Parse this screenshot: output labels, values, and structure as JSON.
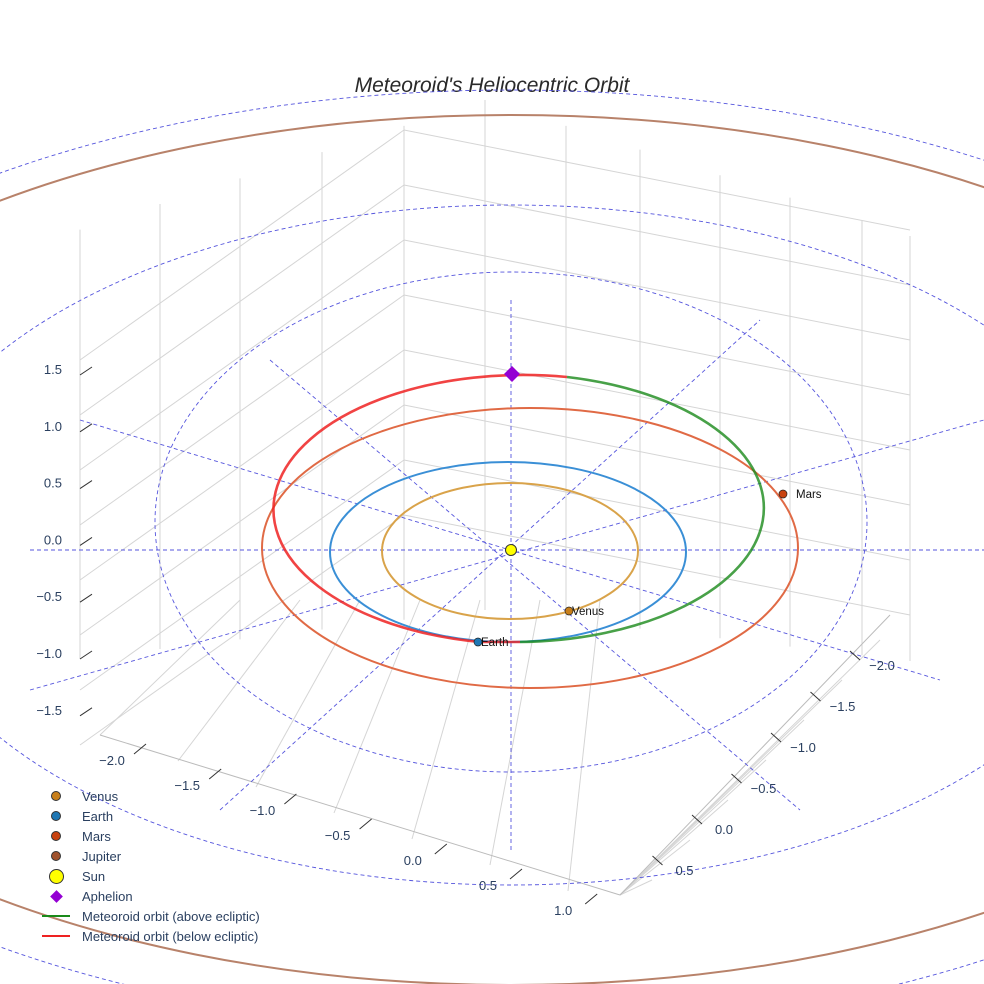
{
  "chart_data": {
    "type": "scatter3d",
    "title": "Meteoroid's Heliocentric Orbit",
    "x_ticks": [
      "−2.0",
      "−1.5",
      "−1.0",
      "−0.5",
      "0.0",
      "0.5",
      "1.0"
    ],
    "y_ticks": [
      "−2.0",
      "−1.5",
      "−1.0",
      "−0.5",
      "0.0",
      "0.5"
    ],
    "z_ticks": [
      "1.5",
      "1.0",
      "0.5",
      "0.0",
      "−0.5",
      "−1.0",
      "−1.5"
    ],
    "planets": [
      {
        "name": "Venus",
        "color": "#c87f1a",
        "orbit_color": "#d9a34a",
        "label": "Venus"
      },
      {
        "name": "Earth",
        "color": "#1f77b4",
        "orbit_color": "#3a8fd6",
        "label": "Earth"
      },
      {
        "name": "Mars",
        "color": "#c8420f",
        "orbit_color": "#e06a45",
        "label": "Mars"
      },
      {
        "name": "Jupiter",
        "color": "#a0522d",
        "orbit_color": "#b8826a"
      }
    ],
    "legend": [
      {
        "label": "Venus",
        "kind": "dot",
        "color": "#c87f1a"
      },
      {
        "label": "Earth",
        "kind": "dot",
        "color": "#1f77b4"
      },
      {
        "label": "Mars",
        "kind": "dot",
        "color": "#c8420f"
      },
      {
        "label": "Jupiter",
        "kind": "dot",
        "color": "#a0522d"
      },
      {
        "label": "Sun",
        "kind": "sun",
        "color": "#ffff00"
      },
      {
        "label": "Aphelion",
        "kind": "diamond",
        "color": "#9400d3"
      },
      {
        "label": "Meteoroid orbit (above ecliptic)",
        "kind": "line",
        "color": "#1a8a1a"
      },
      {
        "label": "Meteoroid orbit (below ecliptic)",
        "kind": "line",
        "color": "#ee2222"
      }
    ],
    "legend_position": "bottom-left",
    "ecliptic_grid_color": "#5555dd"
  }
}
